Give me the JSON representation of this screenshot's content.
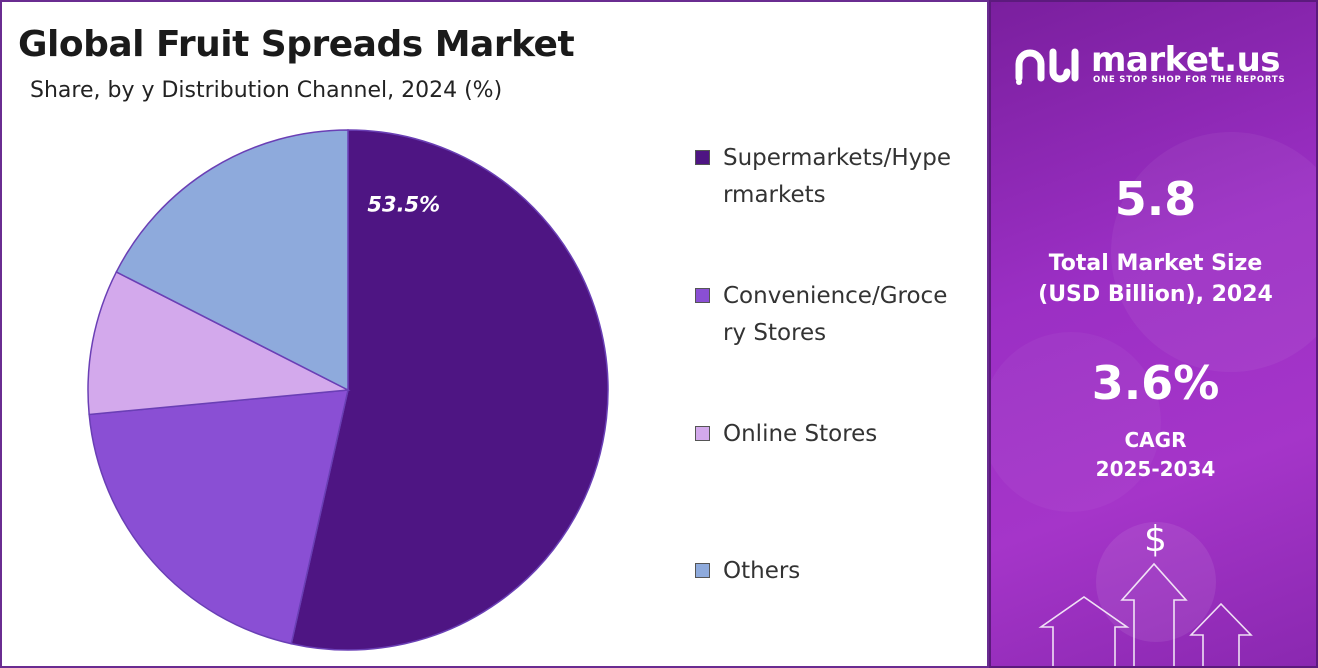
{
  "title": "Global Fruit Spreads Market",
  "subtitle": "Share, by y Distribution Channel, 2024 (%)",
  "chart_data": {
    "type": "pie",
    "title": "Global Fruit Spreads Market",
    "subtitle": "Share, by y Distribution Channel, 2024 (%)",
    "slices": [
      {
        "label": "Supermarkets/Hypermarkets",
        "value": 53.5,
        "color": "#4e1583",
        "data_label": "53.5%"
      },
      {
        "label": "Convenience/Grocery Stores",
        "value": 20.0,
        "color": "#8a4fd4",
        "data_label": ""
      },
      {
        "label": "Online Stores",
        "value": 9.0,
        "color": "#d3a9ec",
        "data_label": ""
      },
      {
        "label": "Others",
        "value": 17.5,
        "color": "#8eaadc",
        "data_label": ""
      }
    ],
    "legend_position": "right"
  },
  "legend": {
    "items": [
      {
        "label": "Supermarkets/Hypermarkets",
        "color": "#4e1583"
      },
      {
        "label": "Convenience/Grocery Stores",
        "color": "#8a4fd4"
      },
      {
        "label": "Online Stores",
        "color": "#d3a9ec"
      },
      {
        "label": "Others",
        "color": "#8eaadc"
      }
    ]
  },
  "sidebar": {
    "brand_name": "market.us",
    "brand_tagline": "ONE STOP SHOP FOR THE REPORTS",
    "market_size_value": "5.8",
    "market_size_label_line1": "Total Market Size",
    "market_size_label_line2": "(USD Billion), 2024",
    "cagr_value": "3.6%",
    "cagr_label_line1": "CAGR",
    "cagr_label_line2": "2025-2034",
    "dollar_symbol": "$"
  },
  "colors": {
    "border": "#6a2c91",
    "sidebar_gradient_start": "#7a1f9e",
    "sidebar_gradient_end": "#a535c9"
  }
}
